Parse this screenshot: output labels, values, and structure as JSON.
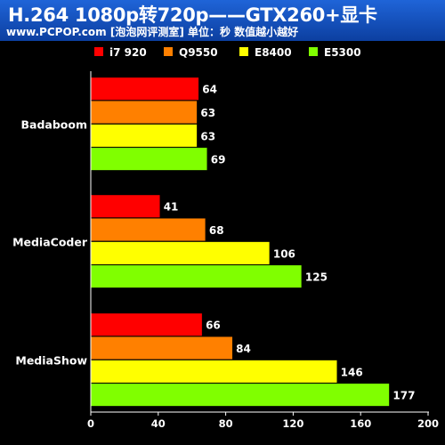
{
  "title": "H.264 1080p转720p——GTX260+显卡",
  "subtitle": "www.PCPOP.com [泡泡网评测室] 单位：秒  数值越小越好",
  "chart_data": {
    "type": "bar",
    "orientation": "horizontal",
    "categories": [
      "Badaboom",
      "MediaCoder",
      "MediaShow"
    ],
    "series": [
      {
        "name": "i7 920",
        "color": "#ff0000",
        "values": [
          64,
          41,
          66
        ]
      },
      {
        "name": "Q9550",
        "color": "#ff8000",
        "values": [
          63,
          68,
          84
        ]
      },
      {
        "name": "E8400",
        "color": "#ffff00",
        "values": [
          63,
          106,
          146
        ]
      },
      {
        "name": "E5300",
        "color": "#80ff00",
        "values": [
          69,
          125,
          177
        ]
      }
    ],
    "xlim": [
      0,
      200
    ],
    "xticks": [
      0,
      40,
      80,
      120,
      160,
      200
    ],
    "legend_position": "top",
    "grid": false,
    "data_labels": true,
    "background": "#000000",
    "text_color": "#ffffff",
    "header_color": "#1a5bd0"
  }
}
